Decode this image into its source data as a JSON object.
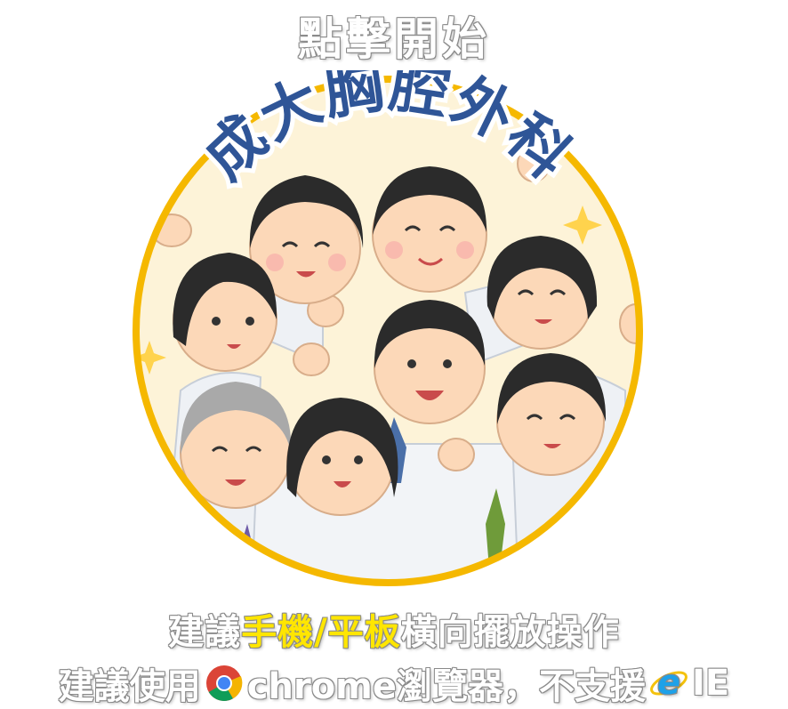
{
  "start": {
    "label": "點擊開始"
  },
  "logo": {
    "title": "成大胸腔外科"
  },
  "hint1": {
    "prefix": "建議",
    "highlight": "手機/平板",
    "suffix": "橫向擺放操作"
  },
  "hint2": {
    "prefix": "建議使用",
    "browser": "chrome瀏覽器，不支援",
    "ie": "IE"
  },
  "colors": {
    "ring": "#f5b800",
    "title_blue": "#2f5597",
    "highlight": "#ffe600",
    "background": "#fdf3d8"
  }
}
